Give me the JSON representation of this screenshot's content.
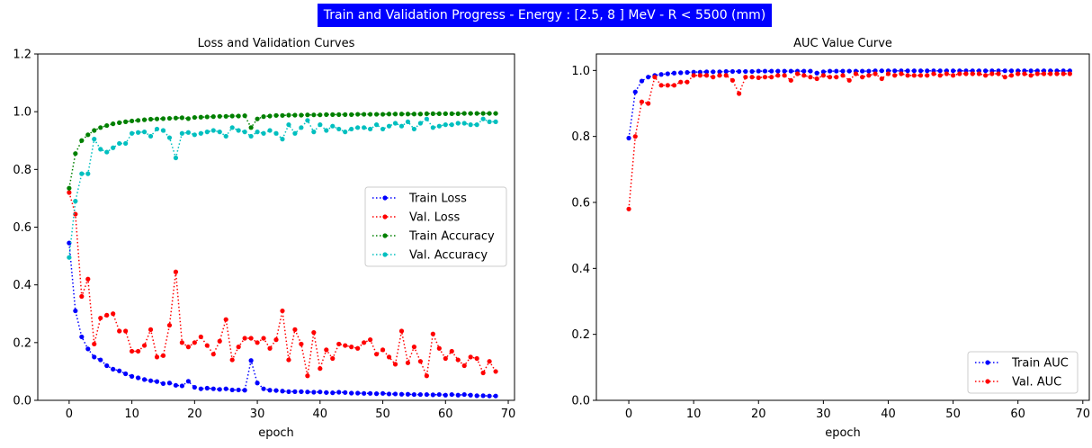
{
  "figure_title": "Train and Validation Progress - Energy : [2.5,  8  ] MeV - R < 5500 (mm)",
  "chart_data": [
    {
      "type": "line",
      "title": "Loss and Validation Curves",
      "xlabel": "epoch",
      "ylabel": "",
      "xlim": [
        -5,
        71
      ],
      "ylim": [
        0,
        1.2
      ],
      "xticks": [
        0,
        10,
        20,
        30,
        40,
        50,
        60,
        70
      ],
      "yticks": [
        0.0,
        0.2,
        0.4,
        0.6,
        0.8,
        1.0,
        1.2
      ],
      "xtick_labels": [
        "0",
        "10",
        "20",
        "30",
        "40",
        "50",
        "60",
        "70"
      ],
      "ytick_labels": [
        "0.0",
        "0.2",
        "0.4",
        "0.6",
        "0.8",
        "1.0",
        "1.2"
      ],
      "grid": false,
      "legend_position": "center-right",
      "series": [
        {
          "name": "Train Loss",
          "color": "#0000ff",
          "values": [
            0.545,
            0.31,
            0.22,
            0.178,
            0.15,
            0.14,
            0.12,
            0.108,
            0.102,
            0.092,
            0.083,
            0.078,
            0.072,
            0.068,
            0.065,
            0.058,
            0.06,
            0.052,
            0.05,
            0.066,
            0.045,
            0.04,
            0.042,
            0.04,
            0.038,
            0.04,
            0.036,
            0.036,
            0.035,
            0.138,
            0.06,
            0.04,
            0.035,
            0.034,
            0.032,
            0.03,
            0.03,
            0.03,
            0.029,
            0.028,
            0.029,
            0.027,
            0.026,
            0.028,
            0.027,
            0.025,
            0.025,
            0.024,
            0.024,
            0.023,
            0.024,
            0.022,
            0.022,
            0.021,
            0.021,
            0.02,
            0.02,
            0.02,
            0.019,
            0.02,
            0.018,
            0.02,
            0.018,
            0.02,
            0.018,
            0.016,
            0.016,
            0.015,
            0.015
          ]
        },
        {
          "name": "Val. Loss",
          "color": "#ff0000",
          "values": [
            0.72,
            0.645,
            0.36,
            0.42,
            0.195,
            0.285,
            0.295,
            0.3,
            0.24,
            0.24,
            0.17,
            0.17,
            0.19,
            0.245,
            0.15,
            0.155,
            0.26,
            0.445,
            0.2,
            0.185,
            0.2,
            0.22,
            0.19,
            0.16,
            0.205,
            0.28,
            0.14,
            0.185,
            0.215,
            0.215,
            0.2,
            0.215,
            0.18,
            0.21,
            0.31,
            0.14,
            0.245,
            0.195,
            0.085,
            0.235,
            0.11,
            0.175,
            0.145,
            0.195,
            0.19,
            0.185,
            0.18,
            0.2,
            0.21,
            0.16,
            0.175,
            0.15,
            0.125,
            0.24,
            0.13,
            0.185,
            0.135,
            0.085,
            0.23,
            0.18,
            0.145,
            0.17,
            0.14,
            0.12,
            0.15,
            0.145,
            0.095,
            0.135,
            0.1
          ]
        },
        {
          "name": "Train Accuracy",
          "color": "#008000",
          "values": [
            0.735,
            0.855,
            0.9,
            0.92,
            0.935,
            0.945,
            0.952,
            0.958,
            0.962,
            0.965,
            0.968,
            0.97,
            0.972,
            0.974,
            0.975,
            0.976,
            0.977,
            0.978,
            0.979,
            0.976,
            0.98,
            0.981,
            0.982,
            0.983,
            0.984,
            0.984,
            0.985,
            0.985,
            0.986,
            0.945,
            0.975,
            0.983,
            0.985,
            0.987,
            0.987,
            0.988,
            0.988,
            0.988,
            0.989,
            0.989,
            0.989,
            0.99,
            0.99,
            0.99,
            0.99,
            0.99,
            0.991,
            0.991,
            0.991,
            0.991,
            0.991,
            0.992,
            0.992,
            0.992,
            0.992,
            0.992,
            0.992,
            0.993,
            0.993,
            0.993,
            0.993,
            0.993,
            0.993,
            0.994,
            0.994,
            0.994,
            0.994,
            0.994,
            0.994
          ]
        },
        {
          "name": "Val. Accuracy",
          "color": "#00bfbf",
          "values": [
            0.495,
            0.69,
            0.785,
            0.785,
            0.905,
            0.87,
            0.86,
            0.875,
            0.89,
            0.89,
            0.925,
            0.928,
            0.93,
            0.915,
            0.94,
            0.935,
            0.91,
            0.84,
            0.925,
            0.928,
            0.92,
            0.925,
            0.93,
            0.935,
            0.93,
            0.915,
            0.945,
            0.935,
            0.93,
            0.915,
            0.93,
            0.925,
            0.935,
            0.925,
            0.905,
            0.955,
            0.925,
            0.945,
            0.97,
            0.93,
            0.955,
            0.935,
            0.95,
            0.94,
            0.93,
            0.94,
            0.945,
            0.945,
            0.94,
            0.955,
            0.94,
            0.95,
            0.96,
            0.95,
            0.965,
            0.94,
            0.96,
            0.975,
            0.945,
            0.95,
            0.955,
            0.955,
            0.96,
            0.96,
            0.955,
            0.955,
            0.975,
            0.965,
            0.965
          ]
        }
      ]
    },
    {
      "type": "line",
      "title": "AUC Value Curve",
      "xlabel": "epoch",
      "ylabel": "",
      "xlim": [
        -5,
        71
      ],
      "ylim": [
        0,
        1.05
      ],
      "xticks": [
        0,
        10,
        20,
        30,
        40,
        50,
        60,
        70
      ],
      "yticks": [
        0.0,
        0.2,
        0.4,
        0.6,
        0.8,
        1.0
      ],
      "xtick_labels": [
        "0",
        "10",
        "20",
        "30",
        "40",
        "50",
        "60",
        "70"
      ],
      "ytick_labels": [
        "0.0",
        "0.2",
        "0.4",
        "0.6",
        "0.8",
        "1.0"
      ],
      "grid": false,
      "legend_position": "lower-right",
      "series": [
        {
          "name": "Train AUC",
          "color": "#0000ff",
          "values": [
            0.795,
            0.935,
            0.968,
            0.98,
            0.985,
            0.988,
            0.99,
            0.992,
            0.993,
            0.994,
            0.995,
            0.995,
            0.996,
            0.996,
            0.996,
            0.997,
            0.997,
            0.997,
            0.997,
            0.997,
            0.998,
            0.998,
            0.998,
            0.998,
            0.998,
            0.998,
            0.998,
            0.998,
            0.998,
            0.992,
            0.996,
            0.998,
            0.998,
            0.998,
            0.998,
            0.998,
            0.998,
            0.998,
            0.999,
            0.999,
            0.999,
            0.999,
            0.999,
            0.999,
            0.999,
            0.999,
            0.999,
            0.999,
            0.999,
            0.999,
            0.999,
            0.999,
            0.999,
            0.999,
            0.999,
            0.999,
            0.999,
            0.999,
            0.999,
            0.999,
            0.999,
            0.999,
            0.999,
            0.999,
            0.999,
            0.999,
            0.999,
            0.999,
            0.999
          ]
        },
        {
          "name": "Val. AUC",
          "color": "#ff0000",
          "values": [
            0.58,
            0.8,
            0.905,
            0.9,
            0.98,
            0.955,
            0.955,
            0.955,
            0.965,
            0.965,
            0.985,
            0.985,
            0.985,
            0.98,
            0.985,
            0.985,
            0.97,
            0.93,
            0.98,
            0.98,
            0.978,
            0.98,
            0.98,
            0.985,
            0.985,
            0.97,
            0.99,
            0.985,
            0.98,
            0.975,
            0.985,
            0.98,
            0.98,
            0.985,
            0.97,
            0.99,
            0.98,
            0.985,
            0.99,
            0.975,
            0.99,
            0.985,
            0.99,
            0.985,
            0.985,
            0.985,
            0.985,
            0.99,
            0.985,
            0.99,
            0.985,
            0.99,
            0.99,
            0.99,
            0.99,
            0.985,
            0.99,
            0.99,
            0.98,
            0.985,
            0.99,
            0.99,
            0.985,
            0.99,
            0.99,
            0.99,
            0.99,
            0.99,
            0.99
          ]
        }
      ]
    }
  ]
}
